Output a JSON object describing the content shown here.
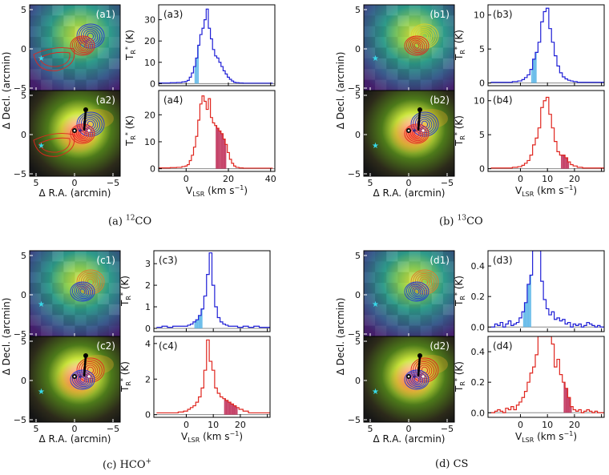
{
  "captions": [
    {
      "label": "(a)",
      "text": "12CO"
    },
    {
      "label": "(b)",
      "text": "13CO"
    },
    {
      "label": "(c)",
      "text": "HCO+"
    },
    {
      "label": "(d)",
      "text": "CS"
    }
  ],
  "axis_text": {
    "map_ylabel": "Δ Decl. (arcmin)",
    "map_xlabel": "Δ R.A. (arcmin)",
    "spec_ylabel": "TR* (K)",
    "spec_xlabel": "VLSR (km s−1)",
    "map_ticks": [
      "5",
      "0",
      "−5"
    ]
  },
  "colors": {
    "blue_line": "#1f1fd6",
    "red_line": "#e0261f",
    "blue_fill": "#5db7e8",
    "red_fill": "#c0305a",
    "star": "#38d8e8"
  },
  "chart_data": [
    {
      "type": "line",
      "panel": "a3",
      "molecule": "12CO",
      "series_color": "blue",
      "xlim": [
        -13,
        42
      ],
      "ylim": [
        -1,
        37
      ],
      "xticks": [
        0,
        20,
        40
      ],
      "yticks": [
        0,
        10,
        20,
        30
      ],
      "ytick_labels": [
        "0",
        "10",
        "20",
        "30"
      ],
      "x": [
        -12,
        -9,
        -6,
        -3,
        -1,
        0,
        1,
        2,
        3,
        4,
        5,
        6,
        7,
        8,
        9,
        10,
        11,
        12,
        13,
        14,
        15,
        16,
        17,
        18,
        19,
        20,
        21,
        22,
        23,
        24,
        26,
        28,
        31,
        35,
        40
      ],
      "y": [
        0.3,
        0.3,
        0.4,
        0.5,
        0.8,
        1,
        1.5,
        3,
        5,
        8,
        12,
        18,
        23,
        26,
        30,
        35,
        26,
        21,
        16,
        13,
        12,
        10,
        8,
        6,
        4.5,
        3,
        2,
        1.2,
        0.6,
        0.4,
        0.3,
        0.2,
        0.2,
        0.2,
        0.2
      ],
      "shade": [
        4,
        6
      ]
    },
    {
      "type": "line",
      "panel": "a4",
      "molecule": "12CO",
      "series_color": "red",
      "xlim": [
        -13,
        42
      ],
      "ylim": [
        -1,
        29
      ],
      "xticks": [
        0,
        20,
        40
      ],
      "xtick_labels": [
        "0",
        "20",
        "40"
      ],
      "yticks": [
        0,
        10,
        20
      ],
      "ytick_labels": [
        "0",
        "10",
        "20"
      ],
      "x": [
        -12,
        -9,
        -6,
        -3,
        -1,
        0,
        1,
        2,
        3,
        4,
        5,
        6,
        7,
        8,
        9,
        10,
        11,
        12,
        13,
        14,
        15,
        16,
        17,
        18,
        19,
        20,
        21,
        22,
        23,
        24,
        26,
        28,
        31,
        35,
        40
      ],
      "y": [
        0.3,
        0.3,
        0.4,
        0.5,
        0.8,
        1,
        1.5,
        3,
        5,
        8,
        12,
        18,
        24,
        27,
        25,
        22,
        26,
        19,
        17,
        16,
        15,
        14,
        13,
        11,
        9,
        6,
        3.5,
        2,
        1,
        0.5,
        0.3,
        0.2,
        0.2,
        0.2,
        0.2
      ],
      "shade": [
        14,
        19
      ]
    },
    {
      "type": "line",
      "panel": "b3",
      "molecule": "13CO",
      "series_color": "blue",
      "xlim": [
        -12,
        31
      ],
      "ylim": [
        -0.4,
        11.5
      ],
      "xticks": [
        0,
        10,
        20,
        30
      ],
      "yticks": [
        0,
        5,
        10
      ],
      "ytick_labels": [
        "0",
        "5",
        "10"
      ],
      "x": [
        -10,
        -8,
        -6,
        -4,
        -2,
        0,
        1,
        2,
        3,
        4,
        5,
        6,
        7,
        8,
        9,
        10,
        11,
        12,
        13,
        14,
        15,
        16,
        17,
        18,
        19,
        20,
        22,
        24,
        26,
        28,
        30
      ],
      "y": [
        0.1,
        0.1,
        0.1,
        0.1,
        0.2,
        0.3,
        0.5,
        0.8,
        1.2,
        2,
        3.5,
        4.5,
        6,
        9,
        10.5,
        11,
        8,
        6,
        4,
        2.5,
        1.5,
        0.9,
        0.6,
        0.4,
        0.3,
        0.2,
        0.1,
        0.1,
        0.1,
        0.1,
        0.1
      ],
      "shade": [
        4,
        6
      ]
    },
    {
      "type": "line",
      "panel": "b4",
      "molecule": "13CO",
      "series_color": "red",
      "xlim": [
        -12,
        31
      ],
      "ylim": [
        -0.4,
        11.5
      ],
      "xticks": [
        0,
        10,
        20,
        30
      ],
      "xtick_labels": [
        "0",
        "10",
        "20"
      ],
      "yticks": [
        0,
        5,
        10
      ],
      "ytick_labels": [
        "0",
        "5",
        "10"
      ],
      "x": [
        -10,
        -8,
        -6,
        -4,
        -2,
        0,
        1,
        2,
        3,
        4,
        5,
        6,
        7,
        8,
        9,
        10,
        11,
        12,
        13,
        14,
        15,
        16,
        17,
        18,
        19,
        20,
        22,
        24,
        26,
        28,
        30
      ],
      "y": [
        0.1,
        0.1,
        0.1,
        0.1,
        0.2,
        0.3,
        0.5,
        0.8,
        1.2,
        2,
        3.5,
        4.5,
        6,
        9,
        10,
        10.5,
        8,
        6,
        4,
        2.5,
        2,
        2,
        1.6,
        1,
        0.6,
        0.4,
        0.2,
        0.1,
        0.1,
        0.1,
        0.1
      ],
      "shade": [
        15,
        18
      ]
    },
    {
      "type": "line",
      "panel": "c3",
      "molecule": "HCO+",
      "series_color": "blue",
      "xlim": [
        -12,
        31
      ],
      "ylim": [
        -0.15,
        3.6
      ],
      "xticks": [
        0,
        10,
        20,
        30
      ],
      "yticks": [
        0,
        1,
        2,
        3
      ],
      "ytick_labels": [
        "0",
        "1",
        "2",
        "3"
      ],
      "x": [
        -10,
        -8,
        -6,
        -4,
        -2,
        0,
        1,
        2,
        3,
        4,
        5,
        6,
        7,
        8,
        9,
        10,
        11,
        12,
        13,
        14,
        15,
        16,
        18,
        20,
        22,
        24,
        26,
        28,
        30
      ],
      "y": [
        0.05,
        0.1,
        0.05,
        0.1,
        0.1,
        0.1,
        0.15,
        0.2,
        0.3,
        0.4,
        0.6,
        0.9,
        1.5,
        2.5,
        3.5,
        2,
        1,
        0.5,
        0.3,
        0.2,
        0.15,
        0.1,
        0.1,
        0.05,
        0.1,
        0.05,
        0.1,
        0.05,
        0.05
      ],
      "shade": [
        3,
        6
      ]
    },
    {
      "type": "line",
      "panel": "c4",
      "molecule": "HCO+",
      "series_color": "red",
      "xlim": [
        -12,
        31
      ],
      "ylim": [
        -0.15,
        4.4
      ],
      "xticks": [
        0,
        10,
        20,
        30
      ],
      "xtick_labels": [
        "0",
        "10",
        "20"
      ],
      "yticks": [
        0,
        2,
        4
      ],
      "ytick_labels": [
        "0",
        "2",
        "4"
      ],
      "x": [
        -10,
        -8,
        -6,
        -4,
        -2,
        0,
        1,
        2,
        3,
        4,
        5,
        6,
        7,
        8,
        9,
        10,
        11,
        12,
        13,
        14,
        15,
        16,
        17,
        18,
        19,
        20,
        22,
        24,
        26,
        28,
        30
      ],
      "y": [
        0.1,
        0.1,
        0.1,
        0.1,
        0.15,
        0.2,
        0.3,
        0.4,
        0.5,
        0.7,
        1,
        1.5,
        2.5,
        4.2,
        3,
        2.5,
        1.5,
        1.2,
        1,
        0.9,
        0.8,
        0.7,
        0.6,
        0.5,
        0.4,
        0.3,
        0.2,
        0.1,
        0.1,
        0.1,
        0.1
      ],
      "shade": [
        14,
        19
      ]
    },
    {
      "type": "line",
      "panel": "d3",
      "molecule": "CS",
      "series_color": "blue",
      "xlim": [
        -12,
        31
      ],
      "ylim": [
        -0.03,
        0.5
      ],
      "xticks": [
        0,
        10,
        20,
        30
      ],
      "yticks": [
        0,
        0.2,
        0.4
      ],
      "ytick_labels": [
        "0.0",
        "0.2",
        "0.4"
      ],
      "x": [
        -10,
        -9,
        -8,
        -7,
        -6,
        -5,
        -4,
        -3,
        -2,
        -1,
        0,
        1,
        2,
        3,
        4,
        5,
        6,
        7,
        8,
        9,
        10,
        11,
        12,
        13,
        14,
        15,
        16,
        17,
        18,
        19,
        20,
        21,
        22,
        23,
        24,
        25,
        26,
        27,
        28,
        29,
        30
      ],
      "y": [
        0.0,
        0.02,
        0.01,
        0.03,
        0.0,
        0.02,
        0.04,
        0.01,
        0.02,
        0.03,
        0.06,
        0.1,
        0.16,
        0.28,
        0.34,
        0.6,
        0.6,
        0.6,
        0.3,
        0.18,
        0.12,
        0.08,
        0.1,
        0.05,
        0.06,
        0.04,
        0.05,
        0.02,
        0.03,
        0.0,
        0.02,
        0.01,
        0.02,
        0.0,
        0.01,
        0.03,
        0.02,
        0.01,
        0.0,
        0.01,
        0.0
      ],
      "shade": [
        1,
        4
      ]
    },
    {
      "type": "line",
      "panel": "d4",
      "molecule": "CS",
      "series_color": "red",
      "xlim": [
        -12,
        31
      ],
      "ylim": [
        -0.03,
        0.5
      ],
      "xticks": [
        0,
        10,
        20,
        30
      ],
      "xtick_labels": [
        "0",
        "10",
        "20"
      ],
      "yticks": [
        0,
        0.2,
        0.4
      ],
      "ytick_labels": [
        "0.0",
        "0.2",
        "0.4"
      ],
      "x": [
        -10,
        -9,
        -8,
        -7,
        -6,
        -5,
        -4,
        -3,
        -2,
        -1,
        0,
        1,
        2,
        3,
        4,
        5,
        6,
        7,
        8,
        9,
        10,
        11,
        12,
        13,
        14,
        15,
        16,
        17,
        18,
        19,
        20,
        21,
        22,
        23,
        24,
        25,
        26,
        27,
        28,
        29,
        30
      ],
      "y": [
        0.0,
        0.01,
        0.02,
        0.01,
        0.0,
        0.03,
        0.02,
        0.04,
        0.02,
        0.05,
        0.07,
        0.1,
        0.14,
        0.2,
        0.26,
        0.3,
        0.38,
        0.5,
        0.6,
        0.6,
        0.6,
        0.6,
        0.45,
        0.3,
        0.35,
        0.25,
        0.2,
        0.16,
        0.1,
        0.04,
        0.02,
        0.01,
        0.02,
        0.0,
        0.01,
        0.02,
        0.01,
        0.0,
        0.01,
        0.0,
        0.0
      ],
      "shade": [
        16,
        19
      ]
    }
  ],
  "maps": [
    {
      "panel": "a1",
      "kind": "moment",
      "contours": [
        "blue",
        "red"
      ],
      "red_extended": true
    },
    {
      "panel": "a2",
      "kind": "rgb",
      "contours": [
        "blue",
        "red"
      ],
      "red_extended": true
    },
    {
      "panel": "b1",
      "kind": "moment",
      "contours": [
        "yellow",
        "red"
      ]
    },
    {
      "panel": "b2",
      "kind": "rgb",
      "contours": [
        "blue",
        "red"
      ]
    },
    {
      "panel": "c1",
      "kind": "moment",
      "contours": [
        "orange",
        "blue"
      ]
    },
    {
      "panel": "c2",
      "kind": "rgb",
      "contours": [
        "red",
        "blue"
      ]
    },
    {
      "panel": "d1",
      "kind": "moment",
      "contours": [
        "orange",
        "blue"
      ]
    },
    {
      "panel": "d2",
      "kind": "rgb",
      "contours": [
        "red",
        "blue"
      ]
    }
  ]
}
